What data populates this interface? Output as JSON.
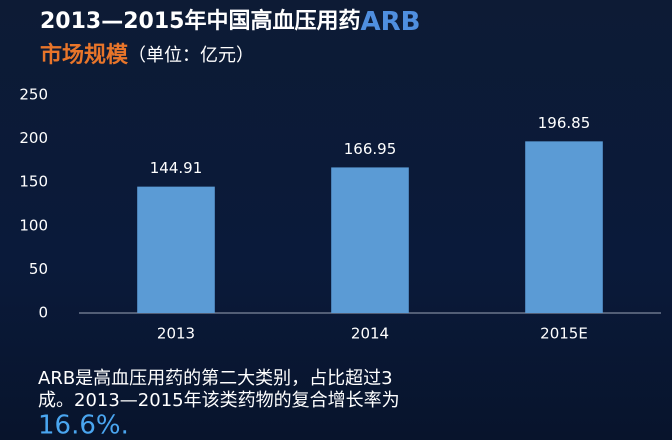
{
  "chart_data": {
    "type": "bar",
    "title": [
      "2013—2015年中国高血压用药",
      "ARB"
    ],
    "subtitle": [
      "市场规模",
      "（单位：亿元）"
    ],
    "categories": [
      "2013",
      "2014",
      "2015E"
    ],
    "values": [
      144.91,
      166.95,
      196.85
    ],
    "color": "#5b9bd5",
    "ylim": [
      0,
      250
    ],
    "yticks": [
      0,
      50,
      100,
      150,
      200,
      250
    ],
    "grid": false,
    "note": [
      "ARB是高血压用药的第二大类别，占比超过3",
      "成。2013—2015年该类药物的复合增长率为",
      "16.6%."
    ]
  }
}
